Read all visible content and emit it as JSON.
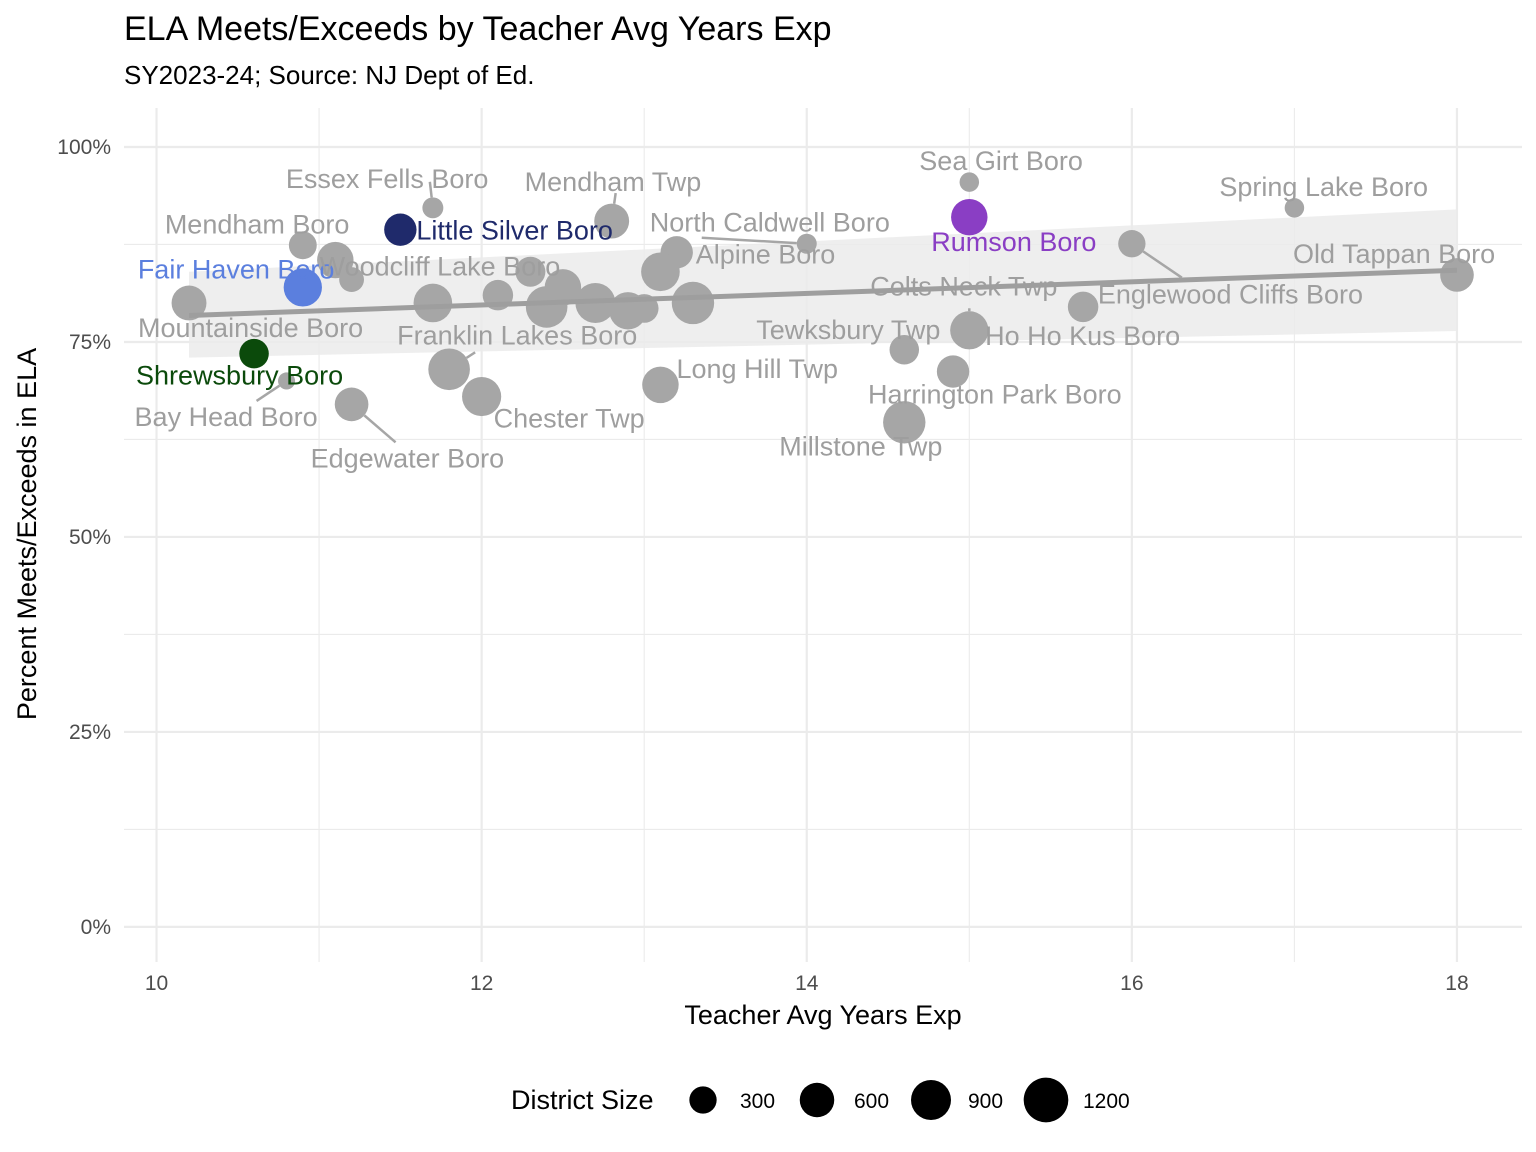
{
  "chart_data": {
    "type": "scatter",
    "title": "ELA Meets/Exceeds by Teacher Avg Years Exp",
    "subtitle": "SY2023-24; Source: NJ Dept of Ed.",
    "xlabel": "Teacher Avg Years Exp",
    "ylabel": "Percent Meets/Exceeds in ELA",
    "xlim": [
      9.8,
      18.4
    ],
    "ylim": [
      -0.045,
      1.05
    ],
    "x_ticks": [
      10,
      12,
      14,
      16,
      18
    ],
    "y_ticks": [
      0,
      0.25,
      0.5,
      0.75,
      1.0
    ],
    "y_tick_labels": [
      "0%",
      "25%",
      "50%",
      "75%",
      "100%"
    ],
    "grid": true,
    "trend_line": {
      "x0": 10.2,
      "y0": 0.784,
      "x1": 18.0,
      "y1": 0.842,
      "band_lower_start": 0.73,
      "band_upper_start": 0.84,
      "band_lower_end": 0.764,
      "band_upper_end": 0.92
    },
    "colors": {
      "default": "#a6a6a6",
      "text_default": "#9e9e9e",
      "little_silver": "#1f2a6b",
      "fair_haven": "#5b7fde",
      "rumson": "#8a3ec4",
      "shrewsbury": "#0b4a0b",
      "trend": "#9e9e9e",
      "band": "#ebebeb",
      "grid": "#ebebeb"
    },
    "points": [
      {
        "name": "Essex Fells Boro",
        "x": 11.7,
        "y": 0.922,
        "size": 120,
        "label": "Essex Fells Boro",
        "color": "#a6a6a6"
      },
      {
        "name": "Mendham Twp",
        "x": 12.8,
        "y": 0.905,
        "size": 620,
        "label": "Mendham Twp",
        "color": "#a6a6a6"
      },
      {
        "name": "Sea Girt Boro",
        "x": 15.0,
        "y": 0.955,
        "size": 90,
        "label": "Sea Girt Boro",
        "color": "#a6a6a6"
      },
      {
        "name": "Spring Lake Boro",
        "x": 17.0,
        "y": 0.922,
        "size": 90,
        "label": "Spring Lake Boro",
        "color": "#a6a6a6"
      },
      {
        "name": "Mendham Boro",
        "x": 10.9,
        "y": 0.874,
        "size": 320,
        "label": "Mendham Boro",
        "color": "#a6a6a6"
      },
      {
        "name": "Little Silver Boro",
        "x": 11.5,
        "y": 0.894,
        "size": 500,
        "label": "Little Silver Boro",
        "color": "#1f2a6b"
      },
      {
        "name": "North Caldwell Boro",
        "x": 14.0,
        "y": 0.876,
        "size": 100,
        "label": "North Caldwell Boro",
        "color": "#a6a6a6"
      },
      {
        "name": "Rumson Boro",
        "x": 15.0,
        "y": 0.91,
        "size": 700,
        "label": "Rumson Boro",
        "color": "#8a3ec4"
      },
      {
        "name": "Englewood Cliffs Boro",
        "x": 16.0,
        "y": 0.876,
        "size": 300,
        "label": "Englewood Cliffs Boro",
        "color": "#a6a6a6"
      },
      {
        "name": "Old Tappan Boro",
        "x": 18.0,
        "y": 0.836,
        "size": 560,
        "label": "Old Tappan Boro",
        "color": "#a6a6a6"
      },
      {
        "name": "Fair Haven Boro",
        "x": 10.9,
        "y": 0.82,
        "size": 800,
        "label": "Fair Haven Boro",
        "color": "#5b7fde"
      },
      {
        "name": "Woodcliff Lake Boro",
        "x": 11.2,
        "y": 0.83,
        "size": 220,
        "label": "Woodcliff Lake Boro",
        "color": "#a6a6a6"
      },
      {
        "name": "Alpine Boro",
        "x": 13.2,
        "y": 0.865,
        "size": 500,
        "label": "Alpine Boro",
        "color": "#a6a6a6"
      },
      {
        "name": "Colts Neck Twp",
        "x": 15.0,
        "y": 0.765,
        "size": 800,
        "label": "Colts Neck Twp",
        "color": "#a6a6a6"
      },
      {
        "name": "Mountainside Boro",
        "x": 10.2,
        "y": 0.8,
        "size": 620,
        "label": "Mountainside Boro",
        "color": "#a6a6a6"
      },
      {
        "name": "Franklin Lakes Boro",
        "x": 11.8,
        "y": 0.715,
        "size": 1000,
        "label": "Franklin Lakes Boro",
        "color": "#a6a6a6"
      },
      {
        "name": "Tewksbury Twp",
        "x": 14.6,
        "y": 0.74,
        "size": 380,
        "label": "Tewksbury Twp",
        "color": "#a6a6a6"
      },
      {
        "name": "Ho Ho Kus Boro",
        "x": 15.7,
        "y": 0.795,
        "size": 420,
        "label": "Ho Ho Kus Boro",
        "color": "#a6a6a6"
      },
      {
        "name": "Shrewsbury Boro",
        "x": 10.6,
        "y": 0.735,
        "size": 380,
        "label": "Shrewsbury Boro",
        "color": "#0b4a0b"
      },
      {
        "name": "Long Hill Twp",
        "x": 13.1,
        "y": 0.695,
        "size": 700,
        "label": "Long Hill Twp",
        "color": "#a6a6a6"
      },
      {
        "name": "Harrington Park Boro",
        "x": 14.9,
        "y": 0.712,
        "size": 500,
        "label": "Harrington Park Boro",
        "color": "#a6a6a6"
      },
      {
        "name": "Bay Head Boro",
        "x": 10.8,
        "y": 0.7,
        "size": 50,
        "label": "Bay Head Boro",
        "color": "#a6a6a6"
      },
      {
        "name": "Chester Twp",
        "x": 12.0,
        "y": 0.68,
        "size": 850,
        "label": "Chester Twp",
        "color": "#a6a6a6"
      },
      {
        "name": "Millstone Twp",
        "x": 14.6,
        "y": 0.647,
        "size": 1050,
        "label": "Millstone Twp",
        "color": "#a6a6a6"
      },
      {
        "name": "Edgewater Boro",
        "x": 11.2,
        "y": 0.67,
        "size": 560,
        "label": "Edgewater Boro",
        "color": "#a6a6a6"
      },
      {
        "name": "",
        "x": 11.1,
        "y": 0.855,
        "size": 700,
        "label": "",
        "color": "#a6a6a6"
      },
      {
        "name": "",
        "x": 11.7,
        "y": 0.8,
        "size": 820,
        "label": "",
        "color": "#a6a6a6"
      },
      {
        "name": "",
        "x": 12.1,
        "y": 0.81,
        "size": 420,
        "label": "",
        "color": "#a6a6a6"
      },
      {
        "name": "",
        "x": 12.3,
        "y": 0.84,
        "size": 400,
        "label": "",
        "color": "#a6a6a6"
      },
      {
        "name": "",
        "x": 12.4,
        "y": 0.795,
        "size": 1000,
        "label": "",
        "color": "#a6a6a6"
      },
      {
        "name": "",
        "x": 12.5,
        "y": 0.82,
        "size": 700,
        "label": "",
        "color": "#a6a6a6"
      },
      {
        "name": "",
        "x": 12.7,
        "y": 0.8,
        "size": 900,
        "label": "",
        "color": "#a6a6a6"
      },
      {
        "name": "",
        "x": 12.9,
        "y": 0.79,
        "size": 750,
        "label": "",
        "color": "#a6a6a6"
      },
      {
        "name": "",
        "x": 13.0,
        "y": 0.793,
        "size": 350,
        "label": "",
        "color": "#a6a6a6"
      },
      {
        "name": "",
        "x": 13.1,
        "y": 0.84,
        "size": 820,
        "label": "",
        "color": "#a6a6a6"
      },
      {
        "name": "",
        "x": 13.3,
        "y": 0.8,
        "size": 1050,
        "label": "",
        "color": "#a6a6a6"
      }
    ],
    "legend": {
      "title": "District Size",
      "placement": "bottom",
      "entries": [
        {
          "label": "300",
          "size": 300
        },
        {
          "label": "600",
          "size": 600
        },
        {
          "label": "900",
          "size": 900
        },
        {
          "label": "1200",
          "size": 1200
        }
      ]
    }
  }
}
